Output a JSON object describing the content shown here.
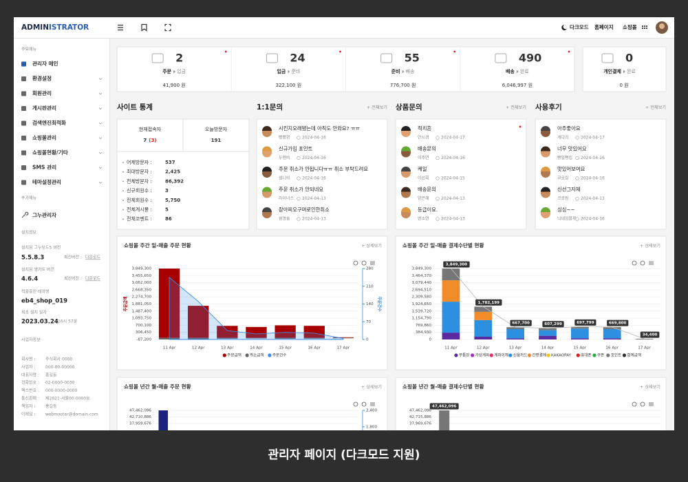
{
  "caption": "관리자 페이지 (다크모드 지원)",
  "header": {
    "logo_main": "ADMIN",
    "logo_accent": "ISTRATOR",
    "links": [
      "다크모드",
      "홈페이지",
      "쇼핑몰"
    ]
  },
  "sidebar": {
    "main_menu_label": "주요메뉴",
    "main_menu": [
      "관리자 메인",
      "환경설정",
      "회원관리",
      "게시판관리",
      "검색엔진최적화",
      "쇼핑몰관리",
      "쇼핑몰현황/기타",
      "SMS 관리",
      "테마설정관리"
    ],
    "extra_menu_label": "추가메뉴",
    "extra_menu": [
      "그누관리자"
    ],
    "install_label": "설치정보",
    "install": [
      {
        "label": "설치된 그누보드5 버전",
        "value": "5.5.8.3",
        "latest": "최신버전 :",
        "link": "다운로드"
      },
      {
        "label": "설치된 영카트 버전",
        "value": "4.6.4",
        "latest": "최신버전 :",
        "link": "다운로드"
      },
      {
        "label": "적용중인 테마명",
        "value": "eb4_shop_019"
      },
      {
        "label": "최초 설치 일자",
        "value": "2023.03.24",
        "time": "16시 57분"
      }
    ],
    "business_label": "사업자정보",
    "business": [
      [
        "회사명 :",
        "주식회사 0000"
      ],
      [
        "사업자 :",
        "000-00-00000"
      ],
      [
        "대표자명 :",
        "홍길동"
      ],
      [
        "전화번호 :",
        "02-0000-0030"
      ],
      [
        "팩스번호 :",
        "000-0000-0000"
      ],
      [
        "통신판매 :",
        "제2021-서울00-0000호"
      ],
      [
        "책임자 :",
        "홍길동"
      ],
      [
        "이메일 :",
        "webmaster@domain.com"
      ]
    ]
  },
  "summary": [
    {
      "from": "주문",
      "to": "입금",
      "count": 2,
      "amount": "41,900 원",
      "color": "#e02020",
      "new": true
    },
    {
      "from": "입금",
      "to": "준비",
      "count": 24,
      "amount": "322,100 원",
      "color": "#2b7de0",
      "new": true
    },
    {
      "from": "준비",
      "to": "배송",
      "count": 55,
      "amount": "776,700 원",
      "color": "#6a3db8",
      "new": true
    },
    {
      "from": "배송",
      "to": "완료",
      "count": 490,
      "amount": "6,046,997 원",
      "color": "#1a9a5c",
      "new": true
    },
    {
      "from": "개인결제",
      "to": "완료",
      "count": 0,
      "amount": "0 원",
      "color": "#f0a020",
      "new": false
    }
  ],
  "site_stats": {
    "title": "사이트 통계",
    "current_label": "현재접속자",
    "current": 7,
    "current_extra": "(3)",
    "today_label": "오늘방문자",
    "today": 191,
    "rows": [
      [
        "어제방문자 :",
        "537"
      ],
      [
        "최대방문자 :",
        "2,425"
      ],
      [
        "전체방문자 :",
        "86,392"
      ],
      [
        "신규회원수 :",
        "3"
      ],
      [
        "전체회원수 :",
        "5,750"
      ],
      [
        "전체게시물 :",
        "5"
      ],
      [
        "전체코멘트 :",
        "86"
      ]
    ]
  },
  "boards": [
    {
      "title": "1:1문의",
      "more": "+ 전체보기",
      "items": [
        {
          "title": "시킨지오래됐는데 아직도 안와요? ㅠㅠ",
          "author": "빵빵현",
          "date": "2024-04-16",
          "new": false
        },
        {
          "title": "신규가입 포인트",
          "author": "두맨비",
          "date": "2024-04-16",
          "new": false
        },
        {
          "title": "주문 취소가 안됩니다ㅠㅠ 취소 부탁드려요",
          "author": "설니비",
          "date": "2024-04-16",
          "new": false
        },
        {
          "title": "주문 취소가 안되네요",
          "author": "라이너스",
          "date": "2024-04-13",
          "new": false
        },
        {
          "title": "장아찌오구며로인한취소",
          "author": "원영술",
          "date": "2024-04-13",
          "new": false
        }
      ]
    },
    {
      "title": "상품문의",
      "more": "+ 전체보기",
      "items": [
        {
          "title": "적치흔",
          "author": "안시경",
          "date": "2024-04-17",
          "new": true
        },
        {
          "title": "배송문의",
          "author": "이주연",
          "date": "2024-04-16",
          "new": false
        },
        {
          "title": "케일",
          "author": "이선희",
          "date": "2024-04-15",
          "new": false
        },
        {
          "title": "배송문의",
          "author": "양은혜",
          "date": "2024-04-13",
          "new": false
        },
        {
          "title": "등급이요.",
          "author": "변소연",
          "date": "2024-04-13",
          "new": false
        }
      ]
    },
    {
      "title": "사용후기",
      "more": "+ 전체보기",
      "items": [
        {
          "title": "아주좋아요",
          "author": "개다리",
          "date": "2024-04-17",
          "new": false
        },
        {
          "title": "너무 맛있어요",
          "author": "뻥빌뻥립",
          "date": "2024-04-16",
          "new": false
        },
        {
          "title": "맛있어보여요",
          "author": "코로링",
          "date": "2024-04-16",
          "new": false
        },
        {
          "title": "신선그자체",
          "author": "코로링",
          "date": "2024-04-13",
          "new": false
        },
        {
          "title": "싱싱~~",
          "author": "닉네임블루",
          "date": "2024-04-16",
          "new": false
        }
      ]
    }
  ],
  "charts": [
    {
      "type": "bar",
      "stacked": true,
      "legend": "bottom",
      "title": "쇼핑몰 주간 일-매출 주문 현황",
      "more": "+ 상세보기",
      "categories": [
        "11 Apr",
        "12 Apr",
        "13 Apr",
        "14 Apr",
        "15 Apr",
        "16 Apr",
        "17 Apr"
      ],
      "ylabel": "주문금액",
      "y2label": "주문건수",
      "ylim": [
        -87200,
        3849300
      ],
      "yticks": [
        {
          "value": -87200,
          "label": "-87,200"
        },
        {
          "value": 306450,
          "label": "306,450"
        },
        {
          "value": 700100,
          "label": "700,100"
        },
        {
          "value": 1093750,
          "label": "1,093,750"
        },
        {
          "value": 1487400,
          "label": "1,487,400"
        },
        {
          "value": 1881050,
          "label": "1,881,050"
        },
        {
          "value": 2274700,
          "label": "2,274,700"
        },
        {
          "value": 2668350,
          "label": "2,668,350"
        },
        {
          "value": 3062000,
          "label": "3,062,000"
        },
        {
          "value": 3455650,
          "label": "3,455,650"
        },
        {
          "value": 3849300,
          "label": "3,849,300"
        }
      ],
      "y2lim": [
        0,
        280
      ],
      "y2ticks": [
        0,
        70,
        140,
        210,
        280
      ],
      "series": [
        {
          "name": "주문금액",
          "color": "#a80000",
          "values": [
            3849300,
            1782199,
            667700,
            607299,
            697799,
            669800,
            34400
          ]
        },
        {
          "name": "취소금액",
          "color": "#666666",
          "values": [
            -87200,
            -70000,
            -45000,
            -30000,
            -50000,
            -40000,
            -20000
          ]
        },
        {
          "name": "주문건수",
          "color": "#3a8ee6",
          "type": "area",
          "axis": "y2",
          "values": [
            245,
            150,
            35,
            22,
            28,
            25,
            4
          ]
        }
      ]
    },
    {
      "type": "bar",
      "stacked": true,
      "legend": "bottom",
      "title": "쇼핑몰 주간 일-매출 결제수단별 현황",
      "more": "+ 상세보기",
      "categories": [
        "11 Apr",
        "12 Apr",
        "13 Apr",
        "14 Apr",
        "15 Apr",
        "16 Apr",
        "17 Apr"
      ],
      "ylim": [
        0,
        3849300
      ],
      "yticks": [
        0,
        {
          "value": 384930,
          "label": "384,930"
        },
        {
          "value": 769860,
          "label": "769,860"
        },
        {
          "value": 1154790,
          "label": "1,154,790"
        },
        {
          "value": 1539720,
          "label": "1,539,720"
        },
        {
          "value": 1924650,
          "label": "1,924,650"
        },
        {
          "value": 2309580,
          "label": "2,309,580"
        },
        {
          "value": 2694510,
          "label": "2,694,510"
        },
        {
          "value": 3079440,
          "label": "3,079,440"
        },
        {
          "value": 3464370,
          "label": "3,464,370"
        },
        {
          "value": 3849300,
          "label": "3,849,300"
        }
      ],
      "series": [
        {
          "name": "무통장",
          "color": "#5b2a9e",
          "values": [
            370000,
            150000,
            60000,
            200000,
            60000,
            60000,
            0
          ]
        },
        {
          "name": "가상계좌",
          "color": "#9b30c0",
          "values": [
            0,
            0,
            0,
            0,
            0,
            0,
            0
          ]
        },
        {
          "name": "계좌이체",
          "color": "#e0306a",
          "values": [
            0,
            0,
            0,
            0,
            0,
            0,
            0
          ]
        },
        {
          "name": "신용카드",
          "color": "#2d8fe0",
          "values": [
            1680000,
            900000,
            500000,
            300000,
            530000,
            500000,
            0
          ]
        },
        {
          "name": "간편결제",
          "color": "#f28c28",
          "values": [
            1160000,
            450000,
            0,
            0,
            0,
            0,
            0
          ]
        },
        {
          "name": "KAKAOPAY",
          "color": "#f5c400",
          "values": [
            0,
            0,
            0,
            0,
            0,
            0,
            0
          ]
        },
        {
          "name": "휴대폰",
          "color": "#d62020",
          "values": [
            0,
            0,
            0,
            0,
            0,
            0,
            0
          ]
        },
        {
          "name": "쿠폰",
          "color": "#2aa84a",
          "values": [
            0,
            0,
            0,
            0,
            0,
            0,
            0
          ]
        },
        {
          "name": "포인트",
          "color": "#777777",
          "values": [
            639300,
            282199,
            107700,
            107299,
            107799,
            109800,
            34400
          ]
        },
        {
          "name": "합계금액",
          "color": "#333333",
          "type": "line",
          "values": [
            3849300,
            1782199,
            667700,
            607299,
            697799,
            669800,
            34400
          ],
          "value_labels": [
            "3,849,300",
            "1,782,199",
            "667,700",
            "607,299",
            "697,799",
            "669,800",
            "34,400"
          ]
        }
      ]
    },
    {
      "type": "bar",
      "title": "쇼핑몰 년간 월-매출 주문 현황",
      "more": "+ 상세보기",
      "categories": [
        null,
        null,
        null,
        null,
        null,
        null,
        null,
        null,
        null,
        null,
        null,
        null
      ],
      "ylim": [
        0,
        47462096
      ],
      "yticks": [
        {
          "value": 47462096,
          "label": "47,462,096"
        },
        {
          "value": 42710886,
          "label": "42,710,886"
        },
        {
          "value": 37959676,
          "label": "37,959,676"
        }
      ],
      "y2lim": [
        0,
        2400
      ],
      "y2ticks": [
        {
          "value": 2400,
          "label": "2,400"
        },
        {
          "value": 1800,
          "label": "1,800"
        }
      ],
      "series": [
        {
          "color": "#1a237e",
          "values": [
            47462096,
            null,
            null,
            null,
            null,
            null,
            null,
            null,
            null,
            null,
            null,
            null
          ]
        }
      ]
    },
    {
      "type": "bar",
      "title": "쇼핑몰 년간 월-매출 결제수단별 현황",
      "more": "+ 상세보기",
      "categories": [
        null,
        null,
        null,
        null,
        null,
        null,
        null,
        null,
        null,
        null,
        null,
        null
      ],
      "ylim": [
        0,
        47462096
      ],
      "yticks": [
        {
          "value": 47462096,
          "label": "47,462,096"
        },
        {
          "value": 42715886,
          "label": "42,715,886"
        },
        {
          "value": 37969676,
          "label": "37,969,676"
        }
      ],
      "series": [
        {
          "color": "#777777",
          "values": [
            47462096,
            null,
            null,
            null,
            null,
            null,
            null,
            null,
            null,
            null,
            null,
            null
          ],
          "value_labels": [
            "47,462,096",
            null,
            null,
            null,
            null,
            null,
            null,
            null,
            null,
            null,
            null,
            null
          ]
        }
      ]
    }
  ]
}
